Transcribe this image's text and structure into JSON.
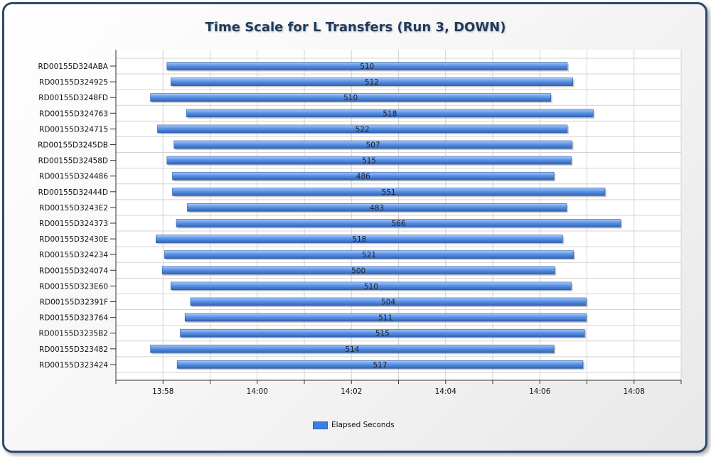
{
  "chart_data": {
    "type": "bar",
    "orientation": "horizontal-range",
    "title": "Time Scale for L Transfers (Run 3, DOWN)",
    "xlabel": "",
    "ylabel": "",
    "x_axis": {
      "unit": "time",
      "min": "13:57",
      "max": "14:09",
      "tick_labels": [
        "13:58",
        "14:00",
        "14:02",
        "14:04",
        "14:06",
        "14:08"
      ]
    },
    "series": [
      {
        "name": "Elapsed Seconds"
      }
    ],
    "legend_position": "bottom",
    "grid": true,
    "bar_color": "#4a86e0",
    "bars": [
      {
        "category": "RD00155D324ABA",
        "start": "13:58:05",
        "end": "14:06:35",
        "label": 510
      },
      {
        "category": "RD00155D324925",
        "start": "13:58:10",
        "end": "14:06:42",
        "label": 512
      },
      {
        "category": "RD00155D3248FD",
        "start": "13:57:44",
        "end": "14:06:14",
        "label": 510
      },
      {
        "category": "RD00155D324763",
        "start": "13:58:30",
        "end": "14:07:08",
        "label": 518
      },
      {
        "category": "RD00155D324715",
        "start": "13:57:53",
        "end": "14:06:35",
        "label": 522
      },
      {
        "category": "RD00155D3245DB",
        "start": "13:58:14",
        "end": "14:06:41",
        "label": 507
      },
      {
        "category": "RD00155D32458D",
        "start": "13:58:05",
        "end": "14:06:40",
        "label": 515
      },
      {
        "category": "RD00155D324486",
        "start": "13:58:12",
        "end": "14:06:18",
        "label": 486
      },
      {
        "category": "RD00155D32444D",
        "start": "13:58:12",
        "end": "14:07:23",
        "label": 551
      },
      {
        "category": "RD00155D3243E2",
        "start": "13:58:31",
        "end": "14:06:34",
        "label": 483
      },
      {
        "category": "RD00155D324373",
        "start": "13:58:17",
        "end": "14:07:43",
        "label": 566
      },
      {
        "category": "RD00155D32430E",
        "start": "13:57:51",
        "end": "14:06:29",
        "label": 518
      },
      {
        "category": "RD00155D324234",
        "start": "13:58:02",
        "end": "14:06:43",
        "label": 521
      },
      {
        "category": "RD00155D324074",
        "start": "13:57:59",
        "end": "14:06:19",
        "label": 500
      },
      {
        "category": "RD00155D323E60",
        "start": "13:58:10",
        "end": "14:06:40",
        "label": 510
      },
      {
        "category": "RD00155D32391F",
        "start": "13:58:35",
        "end": "14:06:59",
        "label": 504
      },
      {
        "category": "RD00155D323764",
        "start": "13:58:28",
        "end": "14:06:59",
        "label": 511
      },
      {
        "category": "RD00155D3235B2",
        "start": "13:58:22",
        "end": "14:06:57",
        "label": 515
      },
      {
        "category": "RD00155D323482",
        "start": "13:57:44",
        "end": "14:06:18",
        "label": 514
      },
      {
        "category": "RD00155D323424",
        "start": "13:58:18",
        "end": "14:06:55",
        "label": 517
      }
    ]
  }
}
